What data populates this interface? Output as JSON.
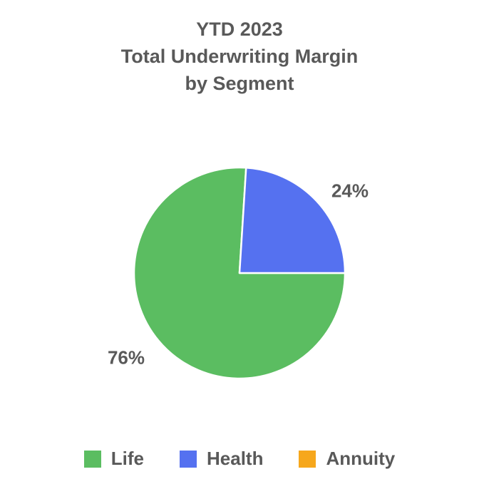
{
  "title": {
    "lines": [
      "YTD 2023",
      "Total Underwriting Margin",
      "by Segment"
    ],
    "color": "#595959"
  },
  "chart_data": {
    "type": "pie",
    "title": "YTD 2023 Total Underwriting Margin by Segment",
    "categories": [
      "Life",
      "Health",
      "Annuity"
    ],
    "values": [
      76,
      24,
      0
    ],
    "value_unit": "percent",
    "slice_labels": [
      "76%",
      "24%",
      ""
    ],
    "slice_colors": [
      "#5bbd61",
      "#5571f0",
      "#f6a71c"
    ],
    "stroke_color": "#ffffff",
    "start_position": "3 o'clock",
    "direction": "clockwise",
    "legend_position": "bottom",
    "label_color": "#595959",
    "background": "#ffffff"
  }
}
